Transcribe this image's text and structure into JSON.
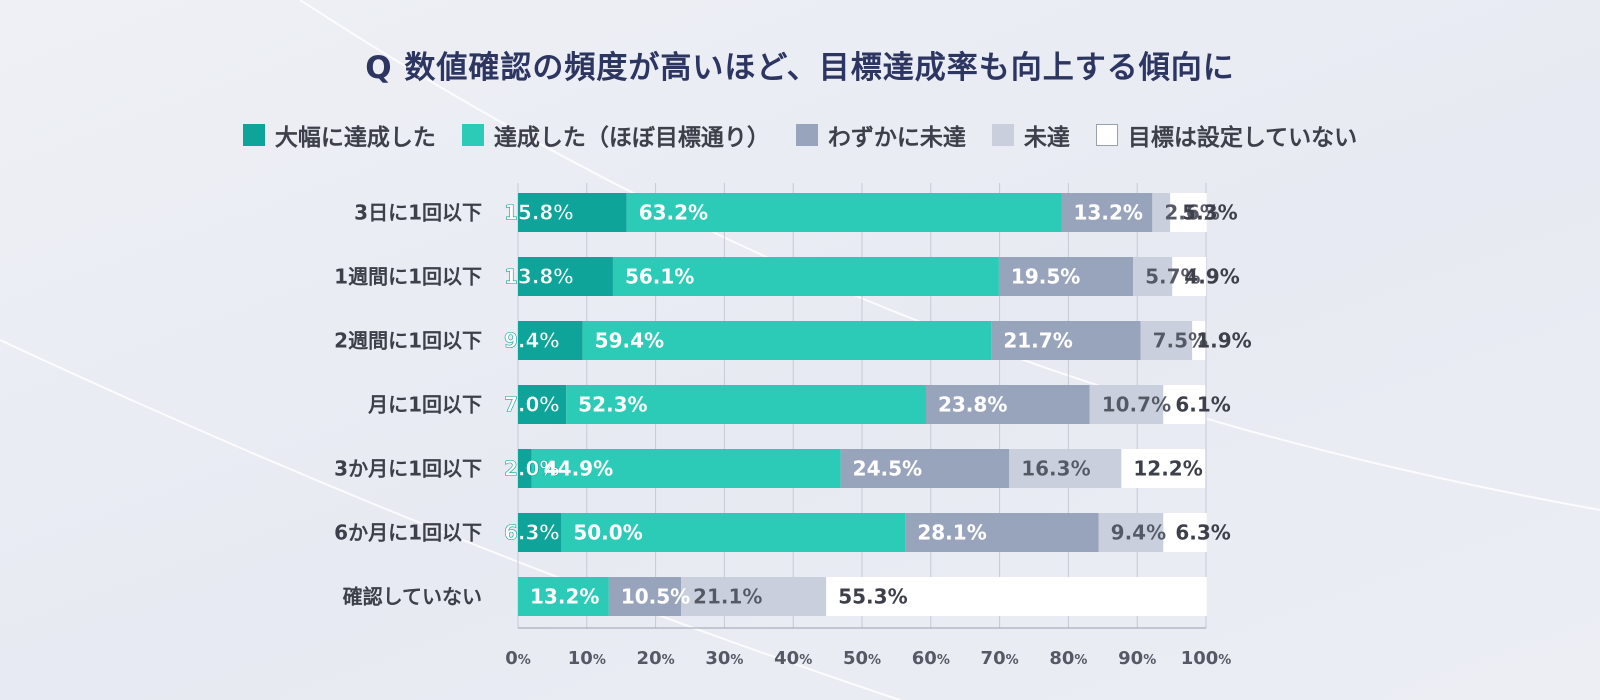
{
  "chart_data": {
    "type": "bar",
    "orientation": "horizontal",
    "stacked": true,
    "title": "Q 数値確認の頻度が高いほど、目標達成率も向上する傾向に",
    "categories": [
      "3日に1回以下",
      "1週間に1回以下",
      "2週間に1回以下",
      "月に1回以下",
      "3か月に1回以下",
      "6か月に1回以下",
      "確認していない"
    ],
    "series": [
      {
        "name": "大幅に達成した",
        "color": "#0fa499",
        "values": [
          15.8,
          13.8,
          9.4,
          7.0,
          2.0,
          6.3,
          null
        ]
      },
      {
        "name": "達成した（ほぼ目標通り）",
        "color": "#2bcbb7",
        "values": [
          63.2,
          56.1,
          59.4,
          52.3,
          44.9,
          50.0,
          13.2
        ]
      },
      {
        "name": "わずかに未達",
        "color": "#98a3bc",
        "values": [
          13.2,
          19.5,
          21.7,
          23.8,
          24.5,
          28.1,
          10.5
        ]
      },
      {
        "name": "未達",
        "color": "#c9cfdc",
        "values": [
          2.6,
          5.7,
          7.5,
          10.7,
          16.3,
          9.4,
          21.1
        ]
      },
      {
        "name": "目標は設定していない",
        "color": "#ffffff",
        "values": [
          5.3,
          4.9,
          1.9,
          6.1,
          12.2,
          6.3,
          55.3
        ]
      }
    ],
    "value_labels": [
      [
        "15.8%",
        "63.2%",
        "13.2%",
        "2.6%",
        "5.3%"
      ],
      [
        "13.8%",
        "56.1%",
        "19.5%",
        "5.7%",
        "4.9%"
      ],
      [
        "9.4%",
        "59.4%",
        "21.7%",
        "7.5%",
        "1.9%"
      ],
      [
        "7.0%",
        "52.3%",
        "23.8%",
        "10.7%",
        "6.1%"
      ],
      [
        "2.0%",
        "44.9%",
        "24.5%",
        "16.3%",
        "12.2%"
      ],
      [
        "6.3%",
        "50.0%",
        "28.1%",
        "9.4%",
        "6.3%"
      ],
      [
        "",
        "13.2%",
        "10.5%",
        "21.1%",
        "55.3%"
      ]
    ],
    "xlim": [
      0,
      100
    ],
    "xticks": [
      0,
      10,
      20,
      30,
      40,
      50,
      60,
      70,
      80,
      90,
      100
    ],
    "tick_suffix": "%",
    "grid": true,
    "legend_position": "top"
  }
}
